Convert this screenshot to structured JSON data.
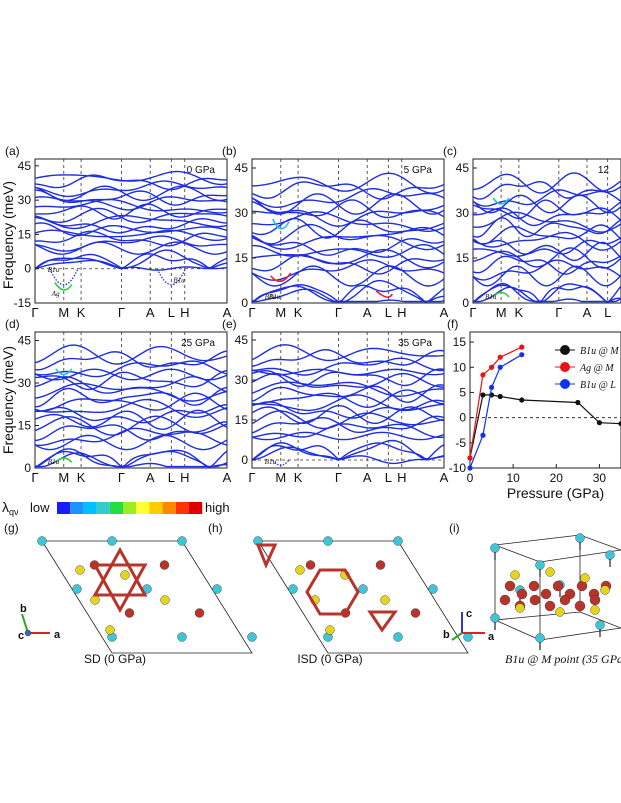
{
  "band_panels": [
    {
      "letter": "(a)",
      "pressure": "0 GPa",
      "yticks": [
        "45",
        "30",
        "15",
        "0",
        "-15"
      ],
      "xticks": [
        "Γ",
        "M",
        "K",
        "Γ",
        "A",
        "L",
        "H",
        "A"
      ],
      "modes": [
        "B1u",
        "Ag",
        "B1u"
      ]
    },
    {
      "letter": "(b)",
      "pressure": "5 GPa",
      "yticks": [
        "45",
        "30",
        "15",
        "0"
      ],
      "xticks": [
        "Γ",
        "M",
        "K",
        "Γ",
        "A",
        "L",
        "H",
        "A"
      ],
      "modes": [
        "B1u",
        "B1u"
      ]
    },
    {
      "letter": "(c)",
      "pressure": "12",
      "yticks": [
        "45",
        "30",
        "15",
        "0"
      ],
      "xticks": [
        "Γ",
        "M",
        "K",
        "Γ",
        "A",
        "L"
      ],
      "modes": [
        "B1u"
      ]
    },
    {
      "letter": "(d)",
      "pressure": "25 GPa",
      "yticks": [
        "45",
        "30",
        "15",
        "0"
      ],
      "xticks": [
        "Γ",
        "M",
        "K",
        "Γ",
        "A",
        "L",
        "H",
        "A"
      ],
      "modes": [
        "B1u"
      ]
    },
    {
      "letter": "(e)",
      "pressure": "35 GPa",
      "yticks": [
        "45",
        "30",
        "15",
        "0"
      ],
      "xticks": [
        "Γ",
        "M",
        "K",
        "Γ",
        "A",
        "L",
        "H",
        "A"
      ],
      "modes": [
        "B1u"
      ]
    }
  ],
  "freq_axis_label": "Frequency (meV)",
  "colorbar": {
    "symbol": "λ",
    "subscript": "qν",
    "low": "low",
    "high": "high",
    "colors": [
      "#1a1aff",
      "#1e90ff",
      "#00bfff",
      "#33cccc",
      "#22dd44",
      "#99ee22",
      "#ffff33",
      "#ffcc00",
      "#ff8800",
      "#ff3300",
      "#dd0000"
    ]
  },
  "chart_data": {
    "type": "line",
    "letter": "(f)",
    "xlabel": "Pressure (GPa)",
    "xlim": [
      0,
      35
    ],
    "ylim": [
      -10,
      17
    ],
    "xticks": [
      0,
      10,
      20,
      30
    ],
    "yticks": [
      15,
      10,
      5,
      0,
      -5,
      -10
    ],
    "legend_position": "top-right",
    "series": [
      {
        "name": "B1u @ M",
        "color": "#111111",
        "x": [
          0,
          3,
          5,
          7,
          12,
          25,
          30,
          35
        ],
        "y": [
          -8,
          4.5,
          4.5,
          4.2,
          3.5,
          3,
          -1,
          -1.2
        ]
      },
      {
        "name": "Ag @ M",
        "color": "#ee1111",
        "x": [
          0,
          3,
          5,
          7,
          12
        ],
        "y": [
          -8,
          8.5,
          10,
          12,
          14
        ]
      },
      {
        "name": "B1u @ L",
        "color": "#1133ee",
        "x": [
          0,
          3,
          5,
          7,
          12
        ],
        "y": [
          -10,
          -3.5,
          6,
          10,
          12.5
        ]
      }
    ]
  },
  "structures": [
    {
      "letter": "(g)",
      "caption": "SD (0 GPa)",
      "axis_b": "b",
      "axis_a": "a",
      "axis_c": "c"
    },
    {
      "letter": "(h)",
      "caption": "ISD (0 GPa)"
    },
    {
      "letter": "(i)",
      "caption": "B1u @ M point (35 GPa)",
      "axis_b": "b",
      "axis_a": "a",
      "axis_c": "c"
    }
  ],
  "colors": {
    "bands": "#1e2ee0",
    "kagome": "#b8342a",
    "cyan_atom": "#40c4d8",
    "yellow_atom": "#e6d31e"
  }
}
